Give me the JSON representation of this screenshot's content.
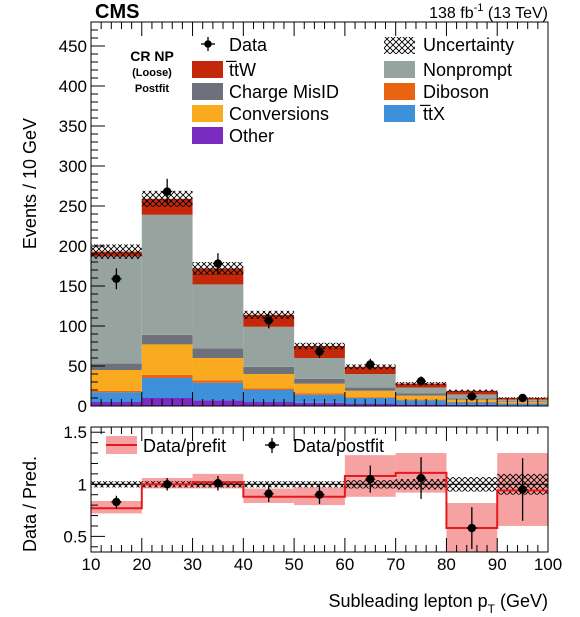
{
  "header": {
    "experiment": "CMS",
    "luminosity": "138 fb",
    "lumi_exp": "-1",
    "energy": " (13 TeV)"
  },
  "region": {
    "line1": "CR NP",
    "line2": "(Loose)",
    "line3": "Postfit"
  },
  "colors": {
    "ttW": "#c4280a",
    "charge_misid": "#6e717c",
    "conversions": "#faaa1e",
    "other": "#7a2bc0",
    "nonprompt": "#97a39f",
    "diboson": "#e86410",
    "ttX": "#3f90da",
    "prefit_band": "#f7a2a2",
    "prefit_line": "#e41a1c"
  },
  "chart_data": [
    {
      "type": "bar",
      "stacked": true,
      "ylabel": "Events / 10 GeV",
      "xlim": [
        10,
        100
      ],
      "ylim": [
        0,
        480
      ],
      "yticks": [
        0,
        50,
        100,
        150,
        200,
        250,
        300,
        350,
        400,
        450
      ],
      "bin_edges": [
        10,
        20,
        30,
        40,
        50,
        60,
        70,
        80,
        90,
        100
      ],
      "series": [
        {
          "name": "Other",
          "color_key": "other",
          "values": [
            5,
            10,
            7,
            5,
            4,
            3,
            2,
            1.5,
            1
          ]
        },
        {
          "name": "t̅tX",
          "color_key": "ttX",
          "values": [
            12,
            25,
            22,
            15,
            10,
            7,
            5,
            3,
            2
          ]
        },
        {
          "name": "Diboson",
          "color_key": "diboson",
          "values": [
            2,
            4,
            3,
            2,
            2,
            1,
            1,
            0.5,
            0.5
          ]
        },
        {
          "name": "Conversions",
          "color_key": "conversions",
          "values": [
            26,
            38,
            28,
            18,
            12,
            8,
            5,
            3,
            2
          ]
        },
        {
          "name": "Charge MisID",
          "color_key": "charge_misid",
          "values": [
            8,
            12,
            12,
            9,
            6,
            4,
            3,
            1.5,
            1
          ]
        },
        {
          "name": "Nonprompt",
          "color_key": "nonprompt",
          "values": [
            134,
            150,
            80,
            50,
            26,
            17,
            7,
            5,
            1.5
          ]
        },
        {
          "name": "t̅tW",
          "color_key": "ttW",
          "values": [
            6,
            20,
            20,
            15,
            15,
            9,
            5,
            4.5,
            2
          ]
        }
      ],
      "uncertainty_half_width": [
        9,
        10,
        8,
        5,
        4,
        3,
        2,
        1.5,
        1
      ],
      "data": {
        "name": "Data",
        "x": [
          15,
          25,
          35,
          45,
          55,
          65,
          75,
          85,
          95
        ],
        "y": [
          159,
          268,
          178,
          107,
          68,
          52,
          31,
          12,
          10
        ],
        "err": [
          13,
          16,
          13,
          10,
          8,
          7,
          6,
          3.5,
          3.2
        ]
      },
      "legend_extra": [
        "Uncertainty"
      ]
    },
    {
      "type": "line",
      "ylabel": "Data / Pred.",
      "xlabel": "Subleading lepton p",
      "xlabel_sub": "T",
      "xlabel_unit": " (GeV)",
      "xlim": [
        10,
        100
      ],
      "ylim": [
        0.35,
        1.55
      ],
      "yticks": [
        0.5,
        1,
        1.5
      ],
      "xticks": [
        10,
        20,
        30,
        40,
        50,
        60,
        70,
        80,
        90,
        100
      ],
      "bin_edges": [
        10,
        20,
        30,
        40,
        50,
        60,
        70,
        80,
        90,
        100
      ],
      "series": [
        {
          "name": "Data/prefit",
          "values": [
            0.77,
            1.0,
            1.02,
            0.88,
            0.88,
            1.08,
            1.11,
            0.58,
            0.94
          ],
          "band_low": [
            0.72,
            0.96,
            0.96,
            0.82,
            0.8,
            0.88,
            0.92,
            0.35,
            0.6
          ],
          "band_high": [
            0.84,
            1.06,
            1.1,
            0.96,
            0.97,
            1.28,
            1.3,
            0.82,
            1.3
          ]
        },
        {
          "name": "Data/postfit",
          "x": [
            15,
            25,
            35,
            45,
            55,
            65,
            75,
            85,
            95
          ],
          "y": [
            0.83,
            1.0,
            1.01,
            0.91,
            0.9,
            1.05,
            1.06,
            0.58,
            0.95
          ],
          "err": [
            0.06,
            0.06,
            0.07,
            0.08,
            0.09,
            0.13,
            0.2,
            0.2,
            0.3
          ]
        }
      ],
      "uncertainty_half_width": [
        0.03,
        0.03,
        0.03,
        0.03,
        0.03,
        0.04,
        0.05,
        0.07,
        0.1
      ]
    }
  ]
}
